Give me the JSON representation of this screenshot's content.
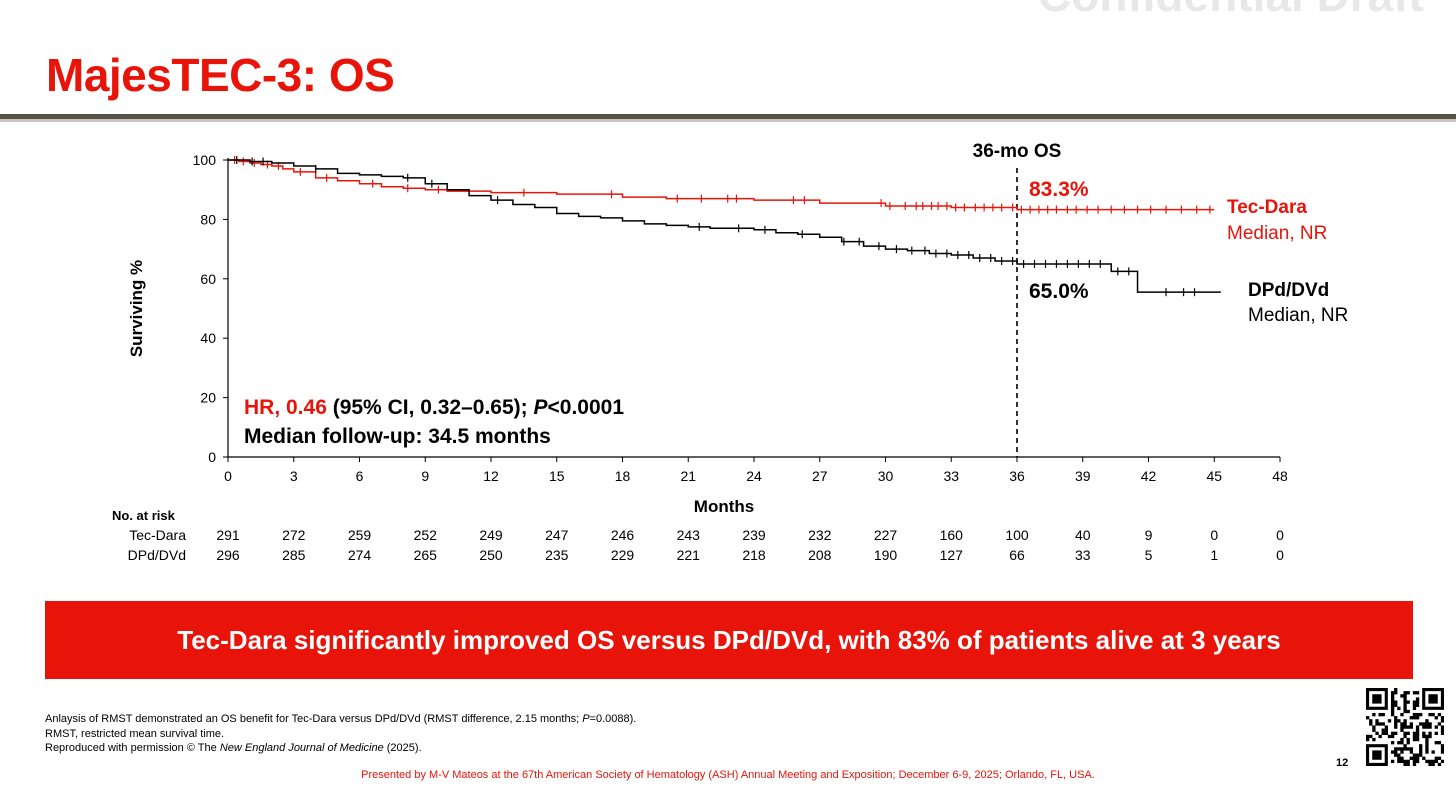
{
  "slide": {
    "watermark": "Confidential Draft",
    "title": "MajesTEC-3: OS",
    "banner": "Tec-Dara significantly improved OS versus DPd/DVd, with 83% of patients alive at 3 years",
    "footnotes": [
      [
        "Anlaysis of RMST demonstrated an OS benefit for Tec-Dara versus DPd/DVd (RMST difference, 2.15 months; ",
        "P",
        "=0.0088)."
      ],
      [
        "RMST, restricted mean survival time.",
        "",
        ""
      ],
      [
        "Reproduced with permission © The ",
        "New England Journal of Medicine",
        " (2025)."
      ]
    ],
    "presenter": "Presented by M-V Mateos at the 67th American Society of Hematology (ASH) Annual Meeting and Exposition; December 6-9, 2025; Orlando, FL, USA.",
    "page_number": "12",
    "qr_icon": "qr-code-icon"
  },
  "chart_data": {
    "type": "line",
    "subtype": "kaplan-meier",
    "xlabel": "Months",
    "ylabel": "Surviving %",
    "xlim": [
      0,
      48
    ],
    "ylim": [
      0,
      100
    ],
    "xticks": [
      0,
      3,
      6,
      9,
      12,
      15,
      18,
      21,
      24,
      27,
      30,
      33,
      36,
      39,
      42,
      45,
      48
    ],
    "yticks": [
      0,
      20,
      40,
      60,
      80,
      100
    ],
    "grid": false,
    "reference_line": {
      "x": 36,
      "label": "36-mo OS"
    },
    "hr_text": {
      "hr": "HR, 0.46",
      "ci": " (95% CI, 0.32–0.65); ",
      "p_symbol": "P",
      "p_value": "<0.0001"
    },
    "followup_text": "Median follow-up: 34.5 months",
    "series": [
      {
        "name": "Tec-Dara",
        "median": "Median, NR",
        "landmark_label": "83.3%",
        "color": "#e8140a",
        "x": [
          0,
          0.5,
          1,
          1.5,
          2,
          2.5,
          3,
          4,
          5,
          6,
          7,
          8,
          9,
          10,
          12,
          15,
          18,
          20,
          24,
          27,
          30,
          33,
          36,
          40,
          45
        ],
        "y": [
          100,
          99.5,
          99,
          98.5,
          98,
          97,
          96,
          94,
          93,
          92,
          91,
          90.5,
          90,
          89.5,
          89,
          88.5,
          87.5,
          87,
          86.5,
          85.5,
          84.5,
          84,
          83.3,
          83.3,
          83.3
        ],
        "censor_x": [
          0.3,
          0.7,
          1.2,
          1.8,
          2.3,
          3.3,
          4.5,
          6.6,
          8.2,
          9.6,
          13.5,
          17.5,
          20.5,
          21.6,
          22.8,
          23.2,
          25.8,
          26.3,
          29.8,
          30.2,
          30.9,
          31.4,
          31.7,
          32.1,
          32.4,
          32.8,
          33.2,
          33.6,
          34.1,
          34.5,
          34.9,
          35.3,
          35.8,
          36.2,
          36.6,
          37.0,
          37.4,
          37.8,
          38.3,
          38.7,
          39.2,
          39.7,
          40.3,
          40.9,
          41.5,
          42.1,
          42.8,
          43.5,
          44.2,
          44.8
        ]
      },
      {
        "name": "DPd/DVd",
        "median": "Median, NR",
        "landmark_label": "65.0%",
        "color": "#000000",
        "x": [
          0,
          1,
          2,
          3,
          4,
          5,
          6,
          7,
          8,
          9,
          10,
          11,
          12,
          13,
          14,
          15,
          16,
          17,
          18,
          19,
          20,
          21,
          22,
          24,
          25,
          26,
          27,
          28,
          29,
          30,
          31,
          32,
          33,
          34,
          35,
          36,
          37,
          38,
          39,
          40,
          40.3,
          41.4,
          41.5,
          45.3
        ],
        "y": [
          100,
          99.5,
          99,
          98,
          97,
          95.5,
          95,
          94.5,
          94,
          92,
          90,
          88,
          86.5,
          85,
          84,
          82,
          81,
          80.5,
          79.5,
          78.5,
          78,
          77.5,
          77,
          76.5,
          75.5,
          75,
          74,
          72.5,
          71,
          70,
          69.5,
          68.5,
          68,
          67,
          66,
          65,
          65,
          65,
          65,
          65,
          62.5,
          62.5,
          55.5,
          55.5
        ],
        "censor_x": [
          0.4,
          1.1,
          1.6,
          4.0,
          8.2,
          9.3,
          12.3,
          21.5,
          23.3,
          24.5,
          26.2,
          28.1,
          28.8,
          29.7,
          30.5,
          31.2,
          31.8,
          32.3,
          32.8,
          33.3,
          33.8,
          34.3,
          34.8,
          35.3,
          35.8,
          36.3,
          36.8,
          37.3,
          37.8,
          38.3,
          38.8,
          39.3,
          39.8,
          40.6,
          41.1,
          42.8,
          43.6,
          44.1
        ]
      }
    ],
    "risk_table": {
      "label": "No. at risk",
      "rows": [
        {
          "name": "Tec-Dara",
          "values": [
            "291",
            "272",
            "259",
            "252",
            "249",
            "247",
            "246",
            "243",
            "239",
            "232",
            "227",
            "160",
            "100",
            "40",
            "9",
            "0",
            "0"
          ]
        },
        {
          "name": "DPd/DVd",
          "values": [
            "296",
            "285",
            "274",
            "265",
            "250",
            "235",
            "229",
            "221",
            "218",
            "208",
            "190",
            "127",
            "66",
            "33",
            "5",
            "1",
            "0"
          ]
        }
      ]
    }
  }
}
